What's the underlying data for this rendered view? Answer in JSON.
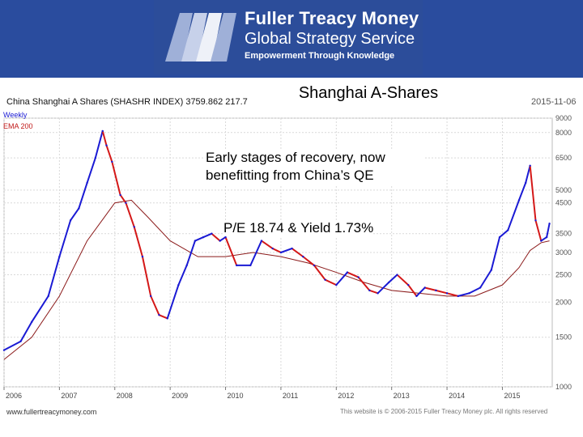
{
  "header": {
    "brand_line1": "Fuller Treacy Money",
    "brand_line2": "Global Strategy Service",
    "tagline": "Empowerment Through Knowledge"
  },
  "slide_title": "Shanghai A-Shares",
  "annotations": {
    "recovery_line1": "Early stages of recovery, now",
    "recovery_line2": "benefitting from China’s QE",
    "valuation": "P/E 18.74 & Yield 1.73%"
  },
  "footer": {
    "website": "www.fullertreacymoney.com",
    "copyright": "This website is © 2006-2015 Fuller Treacy Money plc. All rights reserved"
  },
  "colors": {
    "header_bg": "#2a4c9e",
    "weekly_up": "#1a1ad4",
    "weekly_down": "#d41818",
    "ema": "#8b1a1a",
    "grid": "#d9d9d9"
  },
  "chart_data": {
    "type": "line",
    "title": "China Shanghai A Shares (SHASHR INDEX) 3759.862 217.7",
    "date_label": "2015-11-06",
    "legend": [
      "Weekly",
      "EMA 200"
    ],
    "y_scale": "log",
    "ylim": [
      1000,
      9000
    ],
    "y_ticks": [
      {
        "v": 1000,
        "label": "1000"
      },
      {
        "v": 1500,
        "label": "1500"
      },
      {
        "v": 2000,
        "label": "2000"
      },
      {
        "v": 2500,
        "label": "2500"
      },
      {
        "v": 3000,
        "label": "3000"
      },
      {
        "v": 3500,
        "label": "3500"
      },
      {
        "v": 4500,
        "label": "4500"
      },
      {
        "v": 5000,
        "label": "5000"
      },
      {
        "v": 6500,
        "label": "6500"
      },
      {
        "v": 8000,
        "label": "8000"
      },
      {
        "v": 9000,
        "label": "9000"
      }
    ],
    "x_ticks": [
      "2006",
      "2007",
      "2008",
      "2009",
      "2010",
      "2011",
      "2012",
      "2013",
      "2014",
      "2015"
    ],
    "xlim": [
      2006.0,
      2015.9
    ],
    "grid": true,
    "series": [
      {
        "name": "Weekly",
        "x": [
          2006.0,
          2006.3,
          2006.5,
          2006.8,
          2007.0,
          2007.2,
          2007.35,
          2007.5,
          2007.65,
          2007.78,
          2007.85,
          2007.95,
          2008.1,
          2008.2,
          2008.35,
          2008.5,
          2008.65,
          2008.8,
          2008.95,
          2009.15,
          2009.3,
          2009.45,
          2009.6,
          2009.75,
          2009.9,
          2010.0,
          2010.2,
          2010.45,
          2010.65,
          2010.85,
          2011.0,
          2011.2,
          2011.4,
          2011.6,
          2011.8,
          2012.0,
          2012.2,
          2012.4,
          2012.6,
          2012.75,
          2012.95,
          2013.1,
          2013.3,
          2013.45,
          2013.6,
          2013.8,
          2014.0,
          2014.2,
          2014.4,
          2014.6,
          2014.8,
          2014.95,
          2015.1,
          2015.3,
          2015.42,
          2015.5,
          2015.6,
          2015.7,
          2015.8,
          2015.85
        ],
        "y": [
          1350,
          1450,
          1700,
          2100,
          2900,
          3900,
          4300,
          5300,
          6500,
          8100,
          7200,
          6300,
          4800,
          4500,
          3700,
          2900,
          2100,
          1800,
          1750,
          2300,
          2700,
          3300,
          3400,
          3500,
          3300,
          3400,
          2700,
          2700,
          3300,
          3100,
          3000,
          3100,
          2900,
          2700,
          2400,
          2300,
          2550,
          2450,
          2200,
          2150,
          2350,
          2500,
          2300,
          2100,
          2250,
          2200,
          2150,
          2100,
          2150,
          2250,
          2600,
          3400,
          3600,
          4600,
          5300,
          6100,
          3900,
          3300,
          3400,
          3800
        ]
      },
      {
        "name": "EMA 200",
        "x": [
          2006.0,
          2006.5,
          2007.0,
          2007.5,
          2008.0,
          2008.3,
          2008.6,
          2009.0,
          2009.5,
          2010.0,
          2010.5,
          2011.0,
          2011.5,
          2012.0,
          2012.5,
          2013.0,
          2013.5,
          2014.0,
          2014.5,
          2015.0,
          2015.3,
          2015.5,
          2015.7,
          2015.85
        ],
        "y": [
          1250,
          1500,
          2100,
          3300,
          4500,
          4600,
          4000,
          3300,
          2900,
          2900,
          3000,
          2900,
          2750,
          2550,
          2350,
          2200,
          2150,
          2100,
          2100,
          2300,
          2650,
          3050,
          3250,
          3300
        ]
      }
    ]
  }
}
